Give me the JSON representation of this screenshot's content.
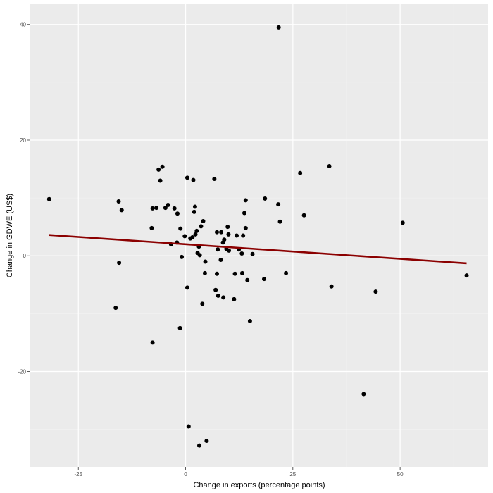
{
  "chart_data": {
    "type": "scatter",
    "xlabel": "Change in exports (percentage points)",
    "ylabel": "Change in GDWE (US$)",
    "xlim": [
      -36.2,
      70.5
    ],
    "ylim": [
      -36.5,
      43.5
    ],
    "x_ticks": [
      -25,
      0,
      25,
      50
    ],
    "x_tick_labels": [
      "-25",
      "0",
      "25",
      "50"
    ],
    "y_ticks": [
      -20,
      0,
      20,
      40
    ],
    "y_tick_labels": [
      "-20",
      "0",
      "20",
      "40"
    ],
    "grid": true,
    "panel_background": "#ebebeb",
    "point_color": "#000000",
    "trend_color": "#8b0000",
    "trend_line": {
      "x": [
        -31.8,
        65.5
      ],
      "y": [
        3.6,
        -1.3
      ]
    },
    "points": [
      {
        "x": -31.8,
        "y": 9.8
      },
      {
        "x": 21.7,
        "y": 39.5
      },
      {
        "x": -15.6,
        "y": 9.4
      },
      {
        "x": -14.9,
        "y": 7.9
      },
      {
        "x": -15.5,
        "y": -1.2
      },
      {
        "x": -16.3,
        "y": -9.0
      },
      {
        "x": -7.7,
        "y": 8.2
      },
      {
        "x": -7.9,
        "y": 4.8
      },
      {
        "x": -7.7,
        "y": -15.0
      },
      {
        "x": -6.8,
        "y": 8.3
      },
      {
        "x": -6.3,
        "y": 14.9
      },
      {
        "x": -5.4,
        "y": 15.4
      },
      {
        "x": -5.9,
        "y": 13.0
      },
      {
        "x": -4.7,
        "y": 8.3
      },
      {
        "x": -4.1,
        "y": 8.8
      },
      {
        "x": -2.6,
        "y": 8.2
      },
      {
        "x": -1.9,
        "y": 7.3
      },
      {
        "x": -1.2,
        "y": 4.7
      },
      {
        "x": -3.4,
        "y": 2.0
      },
      {
        "x": -2.0,
        "y": 2.3
      },
      {
        "x": -0.2,
        "y": 3.4
      },
      {
        "x": -0.9,
        "y": -0.2
      },
      {
        "x": -1.3,
        "y": -12.5
      },
      {
        "x": 0.4,
        "y": 13.5
      },
      {
        "x": 1.1,
        "y": 3.0
      },
      {
        "x": 1.6,
        "y": 3.2
      },
      {
        "x": 1.8,
        "y": 13.1
      },
      {
        "x": 2.2,
        "y": 8.5
      },
      {
        "x": 2.0,
        "y": 7.6
      },
      {
        "x": 2.6,
        "y": 4.3
      },
      {
        "x": 2.3,
        "y": 3.7
      },
      {
        "x": 3.1,
        "y": 1.6
      },
      {
        "x": 2.8,
        "y": 0.5
      },
      {
        "x": 3.3,
        "y": 0.1
      },
      {
        "x": 4.1,
        "y": 6.0
      },
      {
        "x": 3.6,
        "y": 5.1
      },
      {
        "x": 4.6,
        "y": -1.0
      },
      {
        "x": 4.5,
        "y": -3.0
      },
      {
        "x": 3.9,
        "y": -8.3
      },
      {
        "x": 0.4,
        "y": -5.5
      },
      {
        "x": 0.7,
        "y": -29.5
      },
      {
        "x": 3.2,
        "y": -32.8
      },
      {
        "x": 4.9,
        "y": -32.0
      },
      {
        "x": 6.7,
        "y": 13.3
      },
      {
        "x": 7.3,
        "y": 4.1
      },
      {
        "x": 8.3,
        "y": 4.1
      },
      {
        "x": 8.7,
        "y": 2.3
      },
      {
        "x": 9.0,
        "y": 2.8
      },
      {
        "x": 9.8,
        "y": 5.0
      },
      {
        "x": 10.0,
        "y": 3.7
      },
      {
        "x": 9.5,
        "y": 1.2
      },
      {
        "x": 10.1,
        "y": 0.9
      },
      {
        "x": 7.5,
        "y": 1.1
      },
      {
        "x": 8.2,
        "y": -0.7
      },
      {
        "x": 7.3,
        "y": -3.1
      },
      {
        "x": 7.0,
        "y": -5.9
      },
      {
        "x": 7.6,
        "y": -6.9
      },
      {
        "x": 8.8,
        "y": -7.2
      },
      {
        "x": 11.9,
        "y": 3.5
      },
      {
        "x": 12.4,
        "y": 1.1
      },
      {
        "x": 13.1,
        "y": 0.4
      },
      {
        "x": 13.4,
        "y": 3.5
      },
      {
        "x": 14.0,
        "y": 4.8
      },
      {
        "x": 14.4,
        "y": -4.2
      },
      {
        "x": 13.2,
        "y": -3.0
      },
      {
        "x": 11.5,
        "y": -3.1
      },
      {
        "x": 11.3,
        "y": -7.5
      },
      {
        "x": 15.0,
        "y": -11.3
      },
      {
        "x": 15.6,
        "y": 0.3
      },
      {
        "x": 13.7,
        "y": 7.4
      },
      {
        "x": 14.0,
        "y": 9.6
      },
      {
        "x": 18.5,
        "y": 9.9
      },
      {
        "x": 18.3,
        "y": -4.0
      },
      {
        "x": 21.6,
        "y": 8.9
      },
      {
        "x": 22.0,
        "y": 5.9
      },
      {
        "x": 23.4,
        "y": -3.0
      },
      {
        "x": 26.7,
        "y": 14.3
      },
      {
        "x": 27.6,
        "y": 7.0
      },
      {
        "x": 33.5,
        "y": 15.5
      },
      {
        "x": 34.0,
        "y": -5.3
      },
      {
        "x": 41.5,
        "y": -23.9
      },
      {
        "x": 44.3,
        "y": -6.2
      },
      {
        "x": 50.6,
        "y": 5.7
      },
      {
        "x": 65.5,
        "y": -3.4
      }
    ]
  }
}
